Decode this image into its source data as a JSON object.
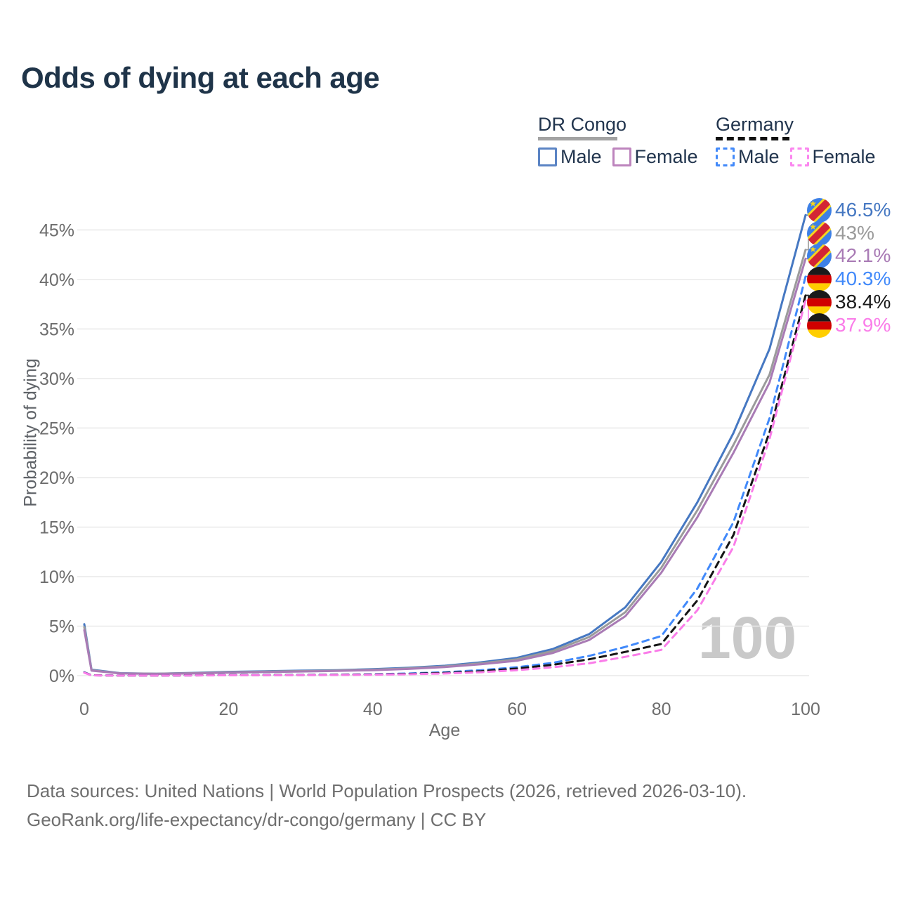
{
  "title": "Odds of dying at each age",
  "watermark": {
    "text": "100"
  },
  "legend": {
    "groups": [
      {
        "name": "DR Congo",
        "line_style": "solid",
        "underline_color": "#a3a3a3",
        "items": [
          {
            "label": "Male",
            "color": "#5b84c4",
            "style": "solid"
          },
          {
            "label": "Female",
            "color": "#bd84bd",
            "style": "solid"
          }
        ]
      },
      {
        "name": "Germany",
        "line_style": "dashed",
        "underline_color": "#111111",
        "items": [
          {
            "label": "Male",
            "color": "#4189fa",
            "style": "dashed"
          },
          {
            "label": "Female",
            "color": "#fb86ef",
            "style": "dashed"
          }
        ]
      }
    ]
  },
  "y_axis": {
    "label": "Probability of dying",
    "tick_values": [
      0,
      5,
      10,
      15,
      20,
      25,
      30,
      35,
      40,
      45
    ],
    "tick_labels": [
      "0%",
      "5%",
      "10%",
      "15%",
      "20%",
      "25%",
      "30%",
      "35%",
      "40%",
      "45%"
    ]
  },
  "x_axis": {
    "label": "Age",
    "tick_values": [
      0,
      20,
      40,
      60,
      80,
      100
    ],
    "tick_labels": [
      "0",
      "20",
      "40",
      "60",
      "80",
      "100"
    ]
  },
  "end_labels": [
    {
      "text": "46.5%",
      "value": 46.5,
      "color": "#4678c2",
      "flag": "cd",
      "series": "DR Congo Male"
    },
    {
      "text": "43%",
      "value": 43.0,
      "color": "#9b9b9b",
      "flag": "cd",
      "series": "DR Congo (both sexes)"
    },
    {
      "text": "42.1%",
      "value": 42.1,
      "color": "#a97bb5",
      "flag": "cd",
      "series": "DR Congo Female"
    },
    {
      "text": "40.3%",
      "value": 40.3,
      "color": "#4189fa",
      "flag": "de",
      "series": "Germany Male"
    },
    {
      "text": "38.4%",
      "value": 38.4,
      "color": "#1a1a1a",
      "flag": "de",
      "series": "Germany (both sexes)"
    },
    {
      "text": "37.9%",
      "value": 37.9,
      "color": "#fa7de9",
      "flag": "de",
      "series": "Germany Female"
    }
  ],
  "chart_data": {
    "type": "line",
    "title": "Odds of dying at each age",
    "xlabel": "Age",
    "ylabel": "Probability of dying",
    "y_unit": "%",
    "xlim": [
      0,
      100
    ],
    "ylim": [
      0,
      47
    ],
    "grid": true,
    "x": [
      0,
      1,
      5,
      10,
      15,
      20,
      25,
      30,
      35,
      40,
      45,
      50,
      55,
      60,
      65,
      70,
      75,
      80,
      85,
      90,
      95,
      100
    ],
    "series": [
      {
        "name": "DR Congo Male",
        "country": "DR Congo",
        "sex": "male",
        "style": "solid",
        "color": "#4678c2",
        "end_label": "46.5%",
        "values": [
          5.2,
          0.6,
          0.25,
          0.2,
          0.28,
          0.38,
          0.45,
          0.5,
          0.55,
          0.65,
          0.8,
          1.0,
          1.35,
          1.8,
          2.7,
          4.2,
          6.9,
          11.5,
          17.5,
          24.5,
          33.0,
          46.5
        ]
      },
      {
        "name": "DR Congo (both sexes)",
        "country": "DR Congo",
        "sex": "both",
        "style": "solid",
        "color": "#9b9b9b",
        "end_label": "43%",
        "values": [
          4.9,
          0.55,
          0.23,
          0.19,
          0.25,
          0.34,
          0.41,
          0.46,
          0.51,
          0.6,
          0.74,
          0.93,
          1.25,
          1.65,
          2.5,
          3.9,
          6.4,
          10.9,
          16.7,
          23.3,
          30.4,
          43.0
        ]
      },
      {
        "name": "DR Congo Female",
        "country": "DR Congo",
        "sex": "female",
        "style": "solid",
        "color": "#a97bb5",
        "end_label": "42.1%",
        "values": [
          4.6,
          0.5,
          0.22,
          0.18,
          0.22,
          0.3,
          0.36,
          0.42,
          0.48,
          0.55,
          0.68,
          0.87,
          1.15,
          1.5,
          2.3,
          3.6,
          6.0,
          10.4,
          16.0,
          22.5,
          29.6,
          42.1
        ]
      },
      {
        "name": "Germany Male",
        "country": "Germany",
        "sex": "male",
        "style": "dashed",
        "color": "#4189fa",
        "end_label": "40.3%",
        "values": [
          0.35,
          0.04,
          0.01,
          0.01,
          0.03,
          0.06,
          0.07,
          0.08,
          0.1,
          0.14,
          0.22,
          0.35,
          0.55,
          0.85,
          1.3,
          2.0,
          2.9,
          4.0,
          8.8,
          15.5,
          26.0,
          40.3
        ]
      },
      {
        "name": "Germany (both sexes)",
        "country": "Germany",
        "sex": "both",
        "style": "dashed",
        "color": "#151515",
        "end_label": "38.4%",
        "values": [
          0.32,
          0.035,
          0.01,
          0.01,
          0.025,
          0.05,
          0.055,
          0.065,
          0.085,
          0.12,
          0.18,
          0.28,
          0.45,
          0.72,
          1.1,
          1.65,
          2.4,
          3.2,
          7.6,
          14.2,
          24.6,
          38.4
        ]
      },
      {
        "name": "Germany Female",
        "country": "Germany",
        "sex": "female",
        "style": "dashed",
        "color": "#fa7de9",
        "end_label": "37.9%",
        "values": [
          0.3,
          0.03,
          0.01,
          0.01,
          0.02,
          0.035,
          0.04,
          0.05,
          0.065,
          0.09,
          0.14,
          0.22,
          0.35,
          0.55,
          0.85,
          1.25,
          1.9,
          2.6,
          6.6,
          13.0,
          23.9,
          37.9
        ]
      }
    ]
  },
  "footer": {
    "line1": "Data sources: United Nations | World Population Prospects (2026, retrieved 2026-03-10).",
    "line2": "GeoRank.org/life-expectancy/dr-congo/germany | CC BY"
  }
}
